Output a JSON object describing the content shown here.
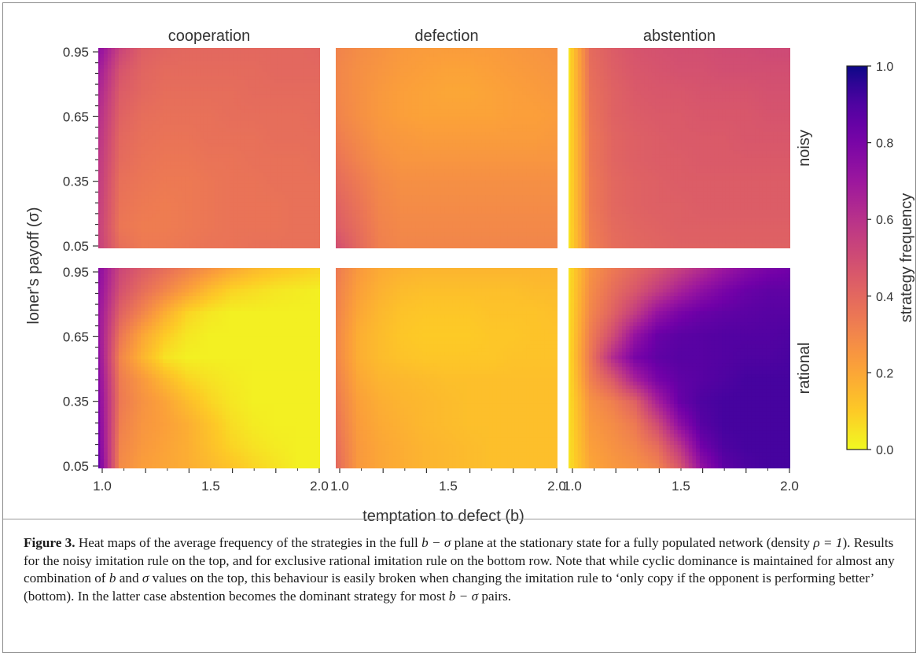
{
  "figure": {
    "caption_label": "Figure 3.",
    "caption_parts": [
      {
        "t": " Heat maps of the average frequency of the strategies in the full "
      },
      {
        "t": "b − σ",
        "m": true
      },
      {
        "t": " plane at the stationary state for a fully populated network (density "
      },
      {
        "t": "ρ = 1",
        "m": true
      },
      {
        "t": "). Results for the noisy imitation rule on the top, and for exclusive rational imitation rule on the bottom row. Note that while cyclic dominance is maintained for almost any combination of "
      },
      {
        "t": "b",
        "m": true
      },
      {
        "t": " and "
      },
      {
        "t": "σ",
        "m": true
      },
      {
        "t": " values on the top, this behaviour is easily broken when changing the imitation rule to ‘only copy if the opponent is performing better’ (bottom). In the latter case abstention becomes the dominant strategy for most "
      },
      {
        "t": "b − σ",
        "m": true
      },
      {
        "t": " pairs."
      }
    ]
  },
  "chart_data": {
    "type": "heatmap",
    "colormap": "plasma (reversed)",
    "columns": [
      "cooperation",
      "defection",
      "abstention"
    ],
    "rows": [
      "noisy",
      "rational"
    ],
    "xlabel": "temptation to defect (b)",
    "ylabel": "loner's payoff (σ)",
    "xlim": [
      1.0,
      2.0
    ],
    "ylim": [
      0.05,
      0.95
    ],
    "xticks": [
      "1.0",
      "1.5",
      "2.0"
    ],
    "yticks": [
      "0.05",
      "0.35",
      "0.65",
      "0.95"
    ],
    "colorbar": {
      "label": "strategy frequency",
      "ticks": [
        "0.0",
        "0.2",
        "0.4",
        "0.6",
        "0.8",
        "1.0"
      ],
      "range": [
        0,
        1
      ]
    },
    "b_grid": [
      1.0,
      1.1,
      1.2,
      1.3,
      1.4,
      1.5,
      1.6,
      1.7,
      1.8,
      1.9,
      2.0
    ],
    "sigma_grid": [
      0.05,
      0.15,
      0.25,
      0.35,
      0.45,
      0.55,
      0.65,
      0.75,
      0.85,
      0.95
    ],
    "panels": [
      {
        "strategy": "cooperation",
        "rule": "noisy",
        "frequency": [
          [
            0.55,
            0.38,
            0.34,
            0.34,
            0.35,
            0.36,
            0.36,
            0.37,
            0.37,
            0.37,
            0.37
          ],
          [
            0.55,
            0.35,
            0.33,
            0.33,
            0.34,
            0.35,
            0.36,
            0.36,
            0.36,
            0.37,
            0.37
          ],
          [
            0.56,
            0.36,
            0.34,
            0.33,
            0.34,
            0.35,
            0.36,
            0.36,
            0.36,
            0.37,
            0.37
          ],
          [
            0.57,
            0.37,
            0.35,
            0.34,
            0.34,
            0.35,
            0.36,
            0.36,
            0.37,
            0.37,
            0.37
          ],
          [
            0.58,
            0.39,
            0.36,
            0.35,
            0.35,
            0.36,
            0.36,
            0.37,
            0.37,
            0.37,
            0.38
          ],
          [
            0.6,
            0.4,
            0.37,
            0.36,
            0.36,
            0.37,
            0.37,
            0.37,
            0.38,
            0.38,
            0.38
          ],
          [
            0.62,
            0.42,
            0.38,
            0.37,
            0.37,
            0.37,
            0.38,
            0.38,
            0.38,
            0.38,
            0.39
          ],
          [
            0.65,
            0.44,
            0.4,
            0.38,
            0.38,
            0.38,
            0.38,
            0.39,
            0.39,
            0.39,
            0.39
          ],
          [
            0.69,
            0.47,
            0.41,
            0.39,
            0.39,
            0.39,
            0.39,
            0.39,
            0.4,
            0.4,
            0.4
          ],
          [
            0.75,
            0.53,
            0.43,
            0.41,
            0.4,
            0.4,
            0.4,
            0.4,
            0.4,
            0.4,
            0.41
          ]
        ]
      },
      {
        "strategy": "defection",
        "rule": "noisy",
        "frequency": [
          [
            0.5,
            0.4,
            0.32,
            0.3,
            0.3,
            0.3,
            0.3,
            0.3,
            0.3,
            0.3,
            0.3
          ],
          [
            0.44,
            0.38,
            0.31,
            0.29,
            0.29,
            0.29,
            0.29,
            0.29,
            0.29,
            0.29,
            0.29
          ],
          [
            0.42,
            0.36,
            0.3,
            0.28,
            0.28,
            0.28,
            0.28,
            0.28,
            0.28,
            0.28,
            0.28
          ],
          [
            0.39,
            0.34,
            0.29,
            0.27,
            0.27,
            0.27,
            0.27,
            0.27,
            0.27,
            0.27,
            0.27
          ],
          [
            0.36,
            0.31,
            0.27,
            0.25,
            0.25,
            0.25,
            0.25,
            0.25,
            0.25,
            0.25,
            0.25
          ],
          [
            0.33,
            0.29,
            0.25,
            0.24,
            0.23,
            0.23,
            0.23,
            0.23,
            0.23,
            0.23,
            0.24
          ],
          [
            0.31,
            0.27,
            0.24,
            0.22,
            0.21,
            0.21,
            0.21,
            0.21,
            0.22,
            0.22,
            0.23
          ],
          [
            0.3,
            0.27,
            0.24,
            0.22,
            0.21,
            0.2,
            0.2,
            0.21,
            0.22,
            0.23,
            0.24
          ],
          [
            0.3,
            0.27,
            0.25,
            0.23,
            0.22,
            0.21,
            0.21,
            0.22,
            0.23,
            0.24,
            0.25
          ],
          [
            0.31,
            0.28,
            0.26,
            0.24,
            0.23,
            0.23,
            0.23,
            0.23,
            0.24,
            0.25,
            0.26
          ]
        ]
      },
      {
        "strategy": "abstention",
        "rule": "noisy",
        "frequency": [
          [
            0.05,
            0.32,
            0.38,
            0.4,
            0.41,
            0.42,
            0.42,
            0.42,
            0.42,
            0.42,
            0.42
          ],
          [
            0.05,
            0.33,
            0.39,
            0.41,
            0.42,
            0.43,
            0.43,
            0.43,
            0.43,
            0.43,
            0.43
          ],
          [
            0.05,
            0.34,
            0.4,
            0.42,
            0.43,
            0.43,
            0.44,
            0.44,
            0.44,
            0.44,
            0.44
          ],
          [
            0.05,
            0.34,
            0.4,
            0.42,
            0.43,
            0.44,
            0.44,
            0.44,
            0.44,
            0.44,
            0.44
          ],
          [
            0.05,
            0.35,
            0.41,
            0.43,
            0.44,
            0.44,
            0.45,
            0.45,
            0.45,
            0.45,
            0.45
          ],
          [
            0.05,
            0.35,
            0.41,
            0.43,
            0.44,
            0.45,
            0.45,
            0.45,
            0.46,
            0.46,
            0.46
          ],
          [
            0.05,
            0.36,
            0.42,
            0.44,
            0.45,
            0.45,
            0.46,
            0.46,
            0.46,
            0.47,
            0.47
          ],
          [
            0.05,
            0.37,
            0.42,
            0.45,
            0.46,
            0.46,
            0.47,
            0.47,
            0.47,
            0.48,
            0.48
          ],
          [
            0.05,
            0.38,
            0.43,
            0.46,
            0.47,
            0.48,
            0.48,
            0.49,
            0.49,
            0.49,
            0.49
          ],
          [
            0.05,
            0.39,
            0.44,
            0.47,
            0.48,
            0.49,
            0.49,
            0.5,
            0.5,
            0.51,
            0.51
          ]
        ]
      },
      {
        "strategy": "cooperation",
        "rule": "rational",
        "frequency": [
          [
            0.85,
            0.28,
            0.22,
            0.2,
            0.18,
            0.15,
            0.12,
            0.08,
            0.05,
            0.02,
            0.02
          ],
          [
            0.82,
            0.3,
            0.24,
            0.21,
            0.18,
            0.13,
            0.08,
            0.05,
            0.03,
            0.02,
            0.02
          ],
          [
            0.8,
            0.32,
            0.25,
            0.22,
            0.18,
            0.12,
            0.06,
            0.03,
            0.02,
            0.02,
            0.02
          ],
          [
            0.78,
            0.34,
            0.26,
            0.21,
            0.14,
            0.08,
            0.04,
            0.02,
            0.02,
            0.02,
            0.02
          ],
          [
            0.76,
            0.33,
            0.24,
            0.15,
            0.08,
            0.05,
            0.03,
            0.02,
            0.02,
            0.02,
            0.02
          ],
          [
            0.74,
            0.3,
            0.16,
            0.05,
            0.02,
            0.02,
            0.02,
            0.02,
            0.02,
            0.02,
            0.02
          ],
          [
            0.72,
            0.35,
            0.2,
            0.1,
            0.04,
            0.02,
            0.02,
            0.02,
            0.02,
            0.02,
            0.02
          ],
          [
            0.72,
            0.42,
            0.3,
            0.18,
            0.08,
            0.04,
            0.02,
            0.02,
            0.02,
            0.02,
            0.02
          ],
          [
            0.74,
            0.48,
            0.38,
            0.3,
            0.22,
            0.14,
            0.08,
            0.06,
            0.04,
            0.03,
            0.02
          ],
          [
            0.76,
            0.52,
            0.44,
            0.38,
            0.32,
            0.26,
            0.2,
            0.15,
            0.12,
            0.1,
            0.08
          ]
        ]
      },
      {
        "strategy": "defection",
        "rule": "rational",
        "frequency": [
          [
            0.4,
            0.24,
            0.2,
            0.18,
            0.16,
            0.15,
            0.14,
            0.13,
            0.13,
            0.13,
            0.13
          ],
          [
            0.38,
            0.24,
            0.2,
            0.18,
            0.16,
            0.15,
            0.14,
            0.13,
            0.13,
            0.13,
            0.13
          ],
          [
            0.36,
            0.23,
            0.19,
            0.17,
            0.15,
            0.14,
            0.13,
            0.13,
            0.13,
            0.13,
            0.13
          ],
          [
            0.34,
            0.22,
            0.18,
            0.16,
            0.15,
            0.14,
            0.13,
            0.13,
            0.13,
            0.13,
            0.13
          ],
          [
            0.32,
            0.2,
            0.16,
            0.15,
            0.14,
            0.13,
            0.13,
            0.13,
            0.13,
            0.13,
            0.13
          ],
          [
            0.3,
            0.18,
            0.14,
            0.12,
            0.11,
            0.11,
            0.11,
            0.11,
            0.12,
            0.12,
            0.12
          ],
          [
            0.3,
            0.18,
            0.14,
            0.11,
            0.1,
            0.1,
            0.1,
            0.11,
            0.11,
            0.12,
            0.12
          ],
          [
            0.31,
            0.2,
            0.15,
            0.12,
            0.11,
            0.11,
            0.11,
            0.12,
            0.12,
            0.12,
            0.13
          ],
          [
            0.32,
            0.22,
            0.17,
            0.14,
            0.13,
            0.13,
            0.13,
            0.13,
            0.13,
            0.14,
            0.14
          ],
          [
            0.34,
            0.24,
            0.19,
            0.17,
            0.16,
            0.16,
            0.16,
            0.16,
            0.16,
            0.16,
            0.16
          ]
        ]
      },
      {
        "strategy": "abstention",
        "rule": "rational",
        "frequency": [
          [
            0.05,
            0.2,
            0.24,
            0.26,
            0.3,
            0.45,
            0.72,
            0.86,
            0.9,
            0.92,
            0.92
          ],
          [
            0.05,
            0.22,
            0.26,
            0.3,
            0.38,
            0.58,
            0.82,
            0.9,
            0.92,
            0.92,
            0.92
          ],
          [
            0.05,
            0.24,
            0.28,
            0.34,
            0.5,
            0.74,
            0.88,
            0.92,
            0.92,
            0.92,
            0.92
          ],
          [
            0.05,
            0.26,
            0.32,
            0.42,
            0.66,
            0.84,
            0.9,
            0.92,
            0.92,
            0.92,
            0.92
          ],
          [
            0.05,
            0.32,
            0.45,
            0.66,
            0.8,
            0.86,
            0.88,
            0.9,
            0.92,
            0.92,
            0.92
          ],
          [
            0.05,
            0.35,
            0.62,
            0.8,
            0.86,
            0.88,
            0.88,
            0.89,
            0.9,
            0.9,
            0.91
          ],
          [
            0.05,
            0.33,
            0.5,
            0.72,
            0.84,
            0.87,
            0.88,
            0.89,
            0.89,
            0.89,
            0.9
          ],
          [
            0.05,
            0.3,
            0.42,
            0.56,
            0.72,
            0.8,
            0.84,
            0.86,
            0.87,
            0.88,
            0.88
          ],
          [
            0.05,
            0.28,
            0.38,
            0.46,
            0.56,
            0.66,
            0.74,
            0.8,
            0.84,
            0.86,
            0.86
          ],
          [
            0.05,
            0.26,
            0.34,
            0.4,
            0.46,
            0.54,
            0.62,
            0.7,
            0.76,
            0.8,
            0.82
          ]
        ]
      }
    ]
  }
}
